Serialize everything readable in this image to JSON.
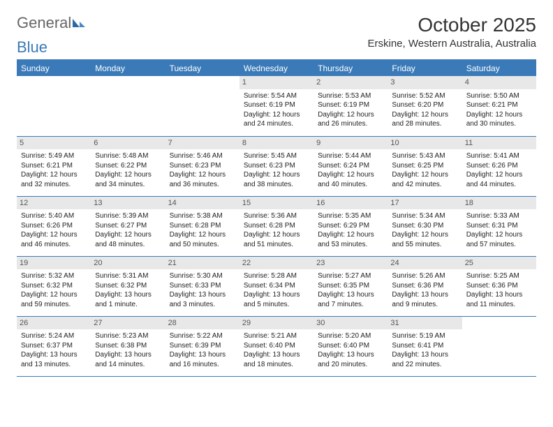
{
  "logo": {
    "text1": "General",
    "text2": "Blue"
  },
  "title": {
    "month": "October 2025",
    "location": "Erskine, Western Australia, Australia"
  },
  "day_headers": [
    "Sunday",
    "Monday",
    "Tuesday",
    "Wednesday",
    "Thursday",
    "Friday",
    "Saturday"
  ],
  "colors": {
    "header_bg": "#3a7ab8",
    "header_fg": "#ffffff",
    "daynum_bg": "#e8e8e8",
    "body_bg": "#ffffff",
    "text": "#222222",
    "rule": "#3a7ab8"
  },
  "fonts": {
    "title_pt": 28,
    "location_pt": 15,
    "header_pt": 12,
    "cell_pt": 10
  },
  "weeks": [
    [
      null,
      null,
      null,
      {
        "d": "1",
        "sr": "Sunrise: 5:54 AM",
        "ss": "Sunset: 6:19 PM",
        "dl1": "Daylight: 12 hours",
        "dl2": "and 24 minutes."
      },
      {
        "d": "2",
        "sr": "Sunrise: 5:53 AM",
        "ss": "Sunset: 6:19 PM",
        "dl1": "Daylight: 12 hours",
        "dl2": "and 26 minutes."
      },
      {
        "d": "3",
        "sr": "Sunrise: 5:52 AM",
        "ss": "Sunset: 6:20 PM",
        "dl1": "Daylight: 12 hours",
        "dl2": "and 28 minutes."
      },
      {
        "d": "4",
        "sr": "Sunrise: 5:50 AM",
        "ss": "Sunset: 6:21 PM",
        "dl1": "Daylight: 12 hours",
        "dl2": "and 30 minutes."
      }
    ],
    [
      {
        "d": "5",
        "sr": "Sunrise: 5:49 AM",
        "ss": "Sunset: 6:21 PM",
        "dl1": "Daylight: 12 hours",
        "dl2": "and 32 minutes."
      },
      {
        "d": "6",
        "sr": "Sunrise: 5:48 AM",
        "ss": "Sunset: 6:22 PM",
        "dl1": "Daylight: 12 hours",
        "dl2": "and 34 minutes."
      },
      {
        "d": "7",
        "sr": "Sunrise: 5:46 AM",
        "ss": "Sunset: 6:23 PM",
        "dl1": "Daylight: 12 hours",
        "dl2": "and 36 minutes."
      },
      {
        "d": "8",
        "sr": "Sunrise: 5:45 AM",
        "ss": "Sunset: 6:23 PM",
        "dl1": "Daylight: 12 hours",
        "dl2": "and 38 minutes."
      },
      {
        "d": "9",
        "sr": "Sunrise: 5:44 AM",
        "ss": "Sunset: 6:24 PM",
        "dl1": "Daylight: 12 hours",
        "dl2": "and 40 minutes."
      },
      {
        "d": "10",
        "sr": "Sunrise: 5:43 AM",
        "ss": "Sunset: 6:25 PM",
        "dl1": "Daylight: 12 hours",
        "dl2": "and 42 minutes."
      },
      {
        "d": "11",
        "sr": "Sunrise: 5:41 AM",
        "ss": "Sunset: 6:26 PM",
        "dl1": "Daylight: 12 hours",
        "dl2": "and 44 minutes."
      }
    ],
    [
      {
        "d": "12",
        "sr": "Sunrise: 5:40 AM",
        "ss": "Sunset: 6:26 PM",
        "dl1": "Daylight: 12 hours",
        "dl2": "and 46 minutes."
      },
      {
        "d": "13",
        "sr": "Sunrise: 5:39 AM",
        "ss": "Sunset: 6:27 PM",
        "dl1": "Daylight: 12 hours",
        "dl2": "and 48 minutes."
      },
      {
        "d": "14",
        "sr": "Sunrise: 5:38 AM",
        "ss": "Sunset: 6:28 PM",
        "dl1": "Daylight: 12 hours",
        "dl2": "and 50 minutes."
      },
      {
        "d": "15",
        "sr": "Sunrise: 5:36 AM",
        "ss": "Sunset: 6:28 PM",
        "dl1": "Daylight: 12 hours",
        "dl2": "and 51 minutes."
      },
      {
        "d": "16",
        "sr": "Sunrise: 5:35 AM",
        "ss": "Sunset: 6:29 PM",
        "dl1": "Daylight: 12 hours",
        "dl2": "and 53 minutes."
      },
      {
        "d": "17",
        "sr": "Sunrise: 5:34 AM",
        "ss": "Sunset: 6:30 PM",
        "dl1": "Daylight: 12 hours",
        "dl2": "and 55 minutes."
      },
      {
        "d": "18",
        "sr": "Sunrise: 5:33 AM",
        "ss": "Sunset: 6:31 PM",
        "dl1": "Daylight: 12 hours",
        "dl2": "and 57 minutes."
      }
    ],
    [
      {
        "d": "19",
        "sr": "Sunrise: 5:32 AM",
        "ss": "Sunset: 6:32 PM",
        "dl1": "Daylight: 12 hours",
        "dl2": "and 59 minutes."
      },
      {
        "d": "20",
        "sr": "Sunrise: 5:31 AM",
        "ss": "Sunset: 6:32 PM",
        "dl1": "Daylight: 13 hours",
        "dl2": "and 1 minute."
      },
      {
        "d": "21",
        "sr": "Sunrise: 5:30 AM",
        "ss": "Sunset: 6:33 PM",
        "dl1": "Daylight: 13 hours",
        "dl2": "and 3 minutes."
      },
      {
        "d": "22",
        "sr": "Sunrise: 5:28 AM",
        "ss": "Sunset: 6:34 PM",
        "dl1": "Daylight: 13 hours",
        "dl2": "and 5 minutes."
      },
      {
        "d": "23",
        "sr": "Sunrise: 5:27 AM",
        "ss": "Sunset: 6:35 PM",
        "dl1": "Daylight: 13 hours",
        "dl2": "and 7 minutes."
      },
      {
        "d": "24",
        "sr": "Sunrise: 5:26 AM",
        "ss": "Sunset: 6:36 PM",
        "dl1": "Daylight: 13 hours",
        "dl2": "and 9 minutes."
      },
      {
        "d": "25",
        "sr": "Sunrise: 5:25 AM",
        "ss": "Sunset: 6:36 PM",
        "dl1": "Daylight: 13 hours",
        "dl2": "and 11 minutes."
      }
    ],
    [
      {
        "d": "26",
        "sr": "Sunrise: 5:24 AM",
        "ss": "Sunset: 6:37 PM",
        "dl1": "Daylight: 13 hours",
        "dl2": "and 13 minutes."
      },
      {
        "d": "27",
        "sr": "Sunrise: 5:23 AM",
        "ss": "Sunset: 6:38 PM",
        "dl1": "Daylight: 13 hours",
        "dl2": "and 14 minutes."
      },
      {
        "d": "28",
        "sr": "Sunrise: 5:22 AM",
        "ss": "Sunset: 6:39 PM",
        "dl1": "Daylight: 13 hours",
        "dl2": "and 16 minutes."
      },
      {
        "d": "29",
        "sr": "Sunrise: 5:21 AM",
        "ss": "Sunset: 6:40 PM",
        "dl1": "Daylight: 13 hours",
        "dl2": "and 18 minutes."
      },
      {
        "d": "30",
        "sr": "Sunrise: 5:20 AM",
        "ss": "Sunset: 6:40 PM",
        "dl1": "Daylight: 13 hours",
        "dl2": "and 20 minutes."
      },
      {
        "d": "31",
        "sr": "Sunrise: 5:19 AM",
        "ss": "Sunset: 6:41 PM",
        "dl1": "Daylight: 13 hours",
        "dl2": "and 22 minutes."
      },
      null
    ]
  ]
}
